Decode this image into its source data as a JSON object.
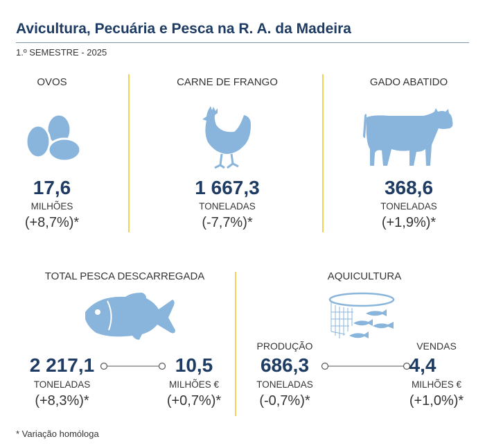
{
  "header": {
    "title": "Avicultura, Pecuária e Pesca na R. A. da Madeira",
    "subtitle": "1.º SEMESTRE - 2025"
  },
  "ovos": {
    "label": "OVOS",
    "value": "17,6",
    "unit": "MILHÕES",
    "variation": "(+8,7%)*"
  },
  "frango": {
    "label": "CARNE DE FRANGO",
    "value": "1 667,3",
    "unit": "TONELADAS",
    "variation": "(-7,7%)*"
  },
  "gado": {
    "label": "GADO ABATIDO",
    "value": "368,6",
    "unit": "TONELADAS",
    "variation": "(+1,9%)*"
  },
  "pesca": {
    "label": "TOTAL PESCA DESCARREGADA",
    "quantity": {
      "value": "2 217,1",
      "unit": "TONELADAS",
      "variation": "(+8,3%)*"
    },
    "sales": {
      "value": "10,5",
      "unit": "MILHÕES €",
      "variation": "(+0,7%)*"
    }
  },
  "aquicultura": {
    "label": "AQUICULTURA",
    "production": {
      "label": "PRODUÇÃO",
      "value": "686,3",
      "unit": "TONELADAS",
      "variation": "(-0,7%)*"
    },
    "sales": {
      "label": "VENDAS",
      "value": "4,4",
      "unit": "MILHÕES €",
      "variation": "(+1,0%)*"
    }
  },
  "footnote": "* Variação homóloga",
  "colors": {
    "icon": "#89b5dc",
    "accent": "#1d3b63",
    "separator": "#f0d25a"
  }
}
